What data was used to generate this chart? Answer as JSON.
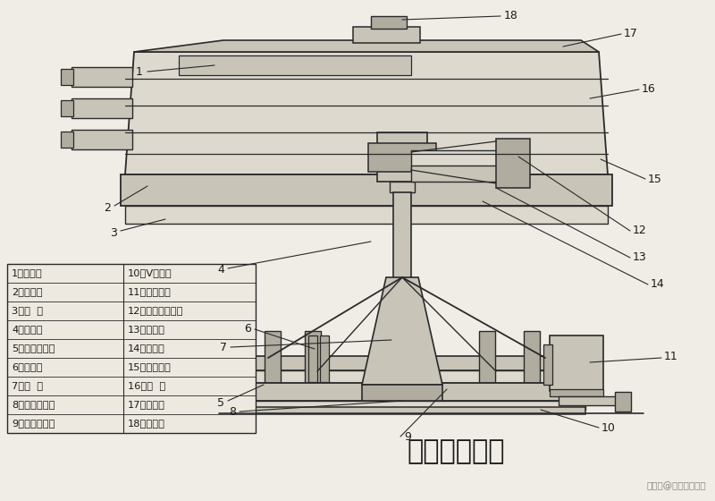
{
  "title": "摇摆筛结构图",
  "title_fontsize": 22,
  "watermark": "搜狐号@和道联合机械",
  "bg_color": "#f0ede6",
  "table_data": [
    [
      "1、观察口",
      "10、V型皮带"
    ],
    [
      "2、出料口",
      "11、驱动电机"
    ],
    [
      "3、底  框",
      "12、从动轴配重铁"
    ],
    [
      "4、从动轴",
      "13、防护板"
    ],
    [
      "5、橡胶弹簧脚",
      "14、注油管"
    ],
    [
      "6、注油管",
      "15、中框锁具"
    ],
    [
      "7、主  轴",
      "16、中  框"
    ],
    [
      "8、金字塔底座",
      "17、防尘盖"
    ],
    [
      "9、主轴配重铁",
      "18、注料口"
    ]
  ],
  "line_color": "#2a2a2a",
  "dark_color": "#1a1a1a",
  "fill_light": "#ddd9cf",
  "fill_mid": "#c8c4b8",
  "fill_dark": "#b0aca0"
}
